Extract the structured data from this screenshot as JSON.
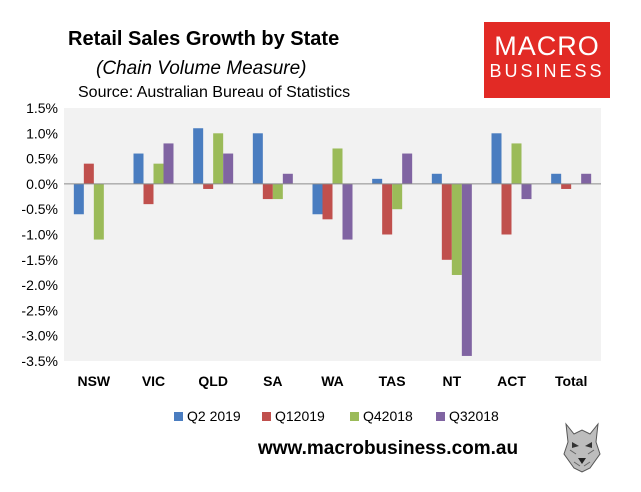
{
  "header": {
    "title": "Retail Sales Growth by State",
    "subtitle": "(Chain Volume Measure)",
    "source": "Source: Australian Bureau of Statistics"
  },
  "logo": {
    "line1": "MACRO",
    "line2": "BUSINESS",
    "color": "#e22a25"
  },
  "footer": {
    "url": "www.macrobusiness.com.au"
  },
  "chart_data": {
    "type": "bar",
    "title": "Retail Sales Growth by State",
    "subtitle": "(Chain Volume Measure)",
    "categories": [
      "NSW",
      "VIC",
      "QLD",
      "SA",
      "WA",
      "TAS",
      "NT",
      "ACT",
      "Total"
    ],
    "series": [
      {
        "name": "Q2 2019",
        "color": "#4a7dc0",
        "values": [
          -0.6,
          0.6,
          1.1,
          1.0,
          -0.6,
          0.1,
          0.2,
          1.0,
          0.2
        ]
      },
      {
        "name": "Q12019",
        "color": "#c0504d",
        "values": [
          0.4,
          -0.4,
          -0.1,
          -0.3,
          -0.7,
          -1.0,
          -1.5,
          -1.0,
          -0.1
        ]
      },
      {
        "name": "Q42018",
        "color": "#9bbb59",
        "values": [
          -1.1,
          0.4,
          1.0,
          -0.3,
          0.7,
          -0.5,
          -1.8,
          0.8,
          0.0
        ]
      },
      {
        "name": "Q32018",
        "color": "#8064a2",
        "values": [
          0.0,
          0.8,
          0.6,
          0.2,
          -1.1,
          0.6,
          -3.4,
          -0.3,
          0.2
        ]
      }
    ],
    "yticks": [
      "1.5%",
      "1.0%",
      "0.5%",
      "0.0%",
      "-0.5%",
      "-1.0%",
      "-1.5%",
      "-2.0%",
      "-2.5%",
      "-3.0%",
      "-3.5%"
    ],
    "ylim": [
      -3.5,
      1.5
    ],
    "ytick_step": 0.5,
    "grid": false,
    "legend_position": "bottom",
    "plot_background": "#f2f2f2"
  }
}
